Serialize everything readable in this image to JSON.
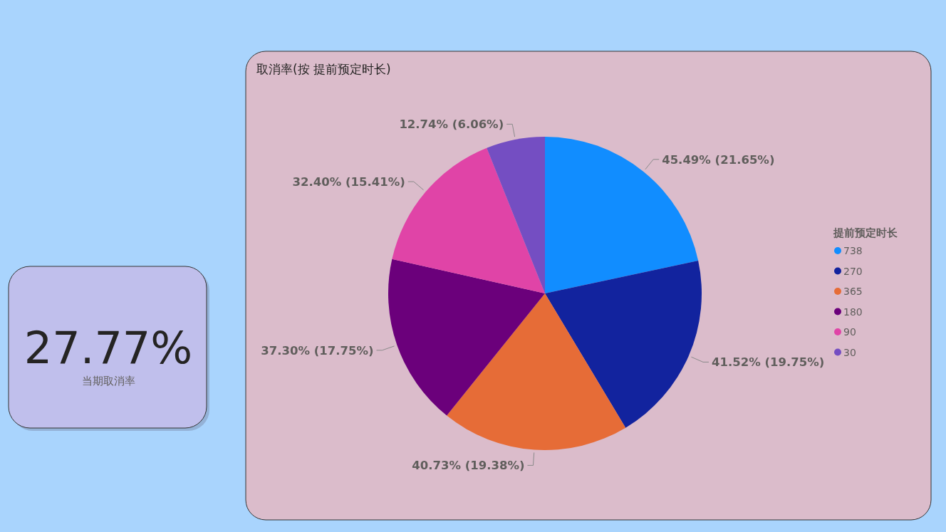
{
  "chart_data": [
    {
      "type": "other",
      "annotations": [
        "27.77%",
        "当期取消率"
      ]
    },
    {
      "type": "pie",
      "title": "取消率(按 提前预定时长)",
      "legend_title": "提前预定时长",
      "legend": "right",
      "categories": [
        "738",
        "270",
        "365",
        "180",
        "90",
        "30"
      ],
      "values": [
        45.49,
        41.52,
        40.73,
        37.3,
        32.4,
        12.74
      ],
      "colors": [
        "#118dff",
        "#12239e",
        "#e66c37",
        "#6b007b",
        "#e044a7",
        "#744ec2"
      ],
      "value_labels": [
        "45.49% (21.65%)",
        "41.52% (19.75%)",
        "40.73% (19.38%)",
        "37.30% (17.75%)",
        "32.40% (15.41%)",
        "12.74% (6.06%)"
      ]
    }
  ]
}
